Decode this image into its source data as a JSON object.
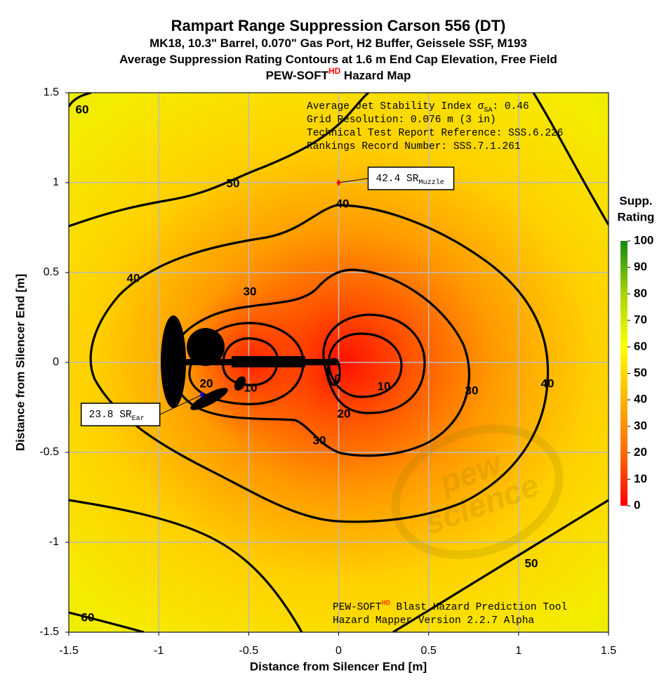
{
  "chart_data": {
    "type": "contour",
    "title": "Rampart Range Suppression Carson 556 (DT)",
    "subtitle_lines": [
      [
        "MK18, 10.3\" Barrel, 0.070\" Gas Port, H2 Buffer, Geissele SSF, M193"
      ],
      [
        "Average Suppression Rating Contours at 1.6 m End Cap Elevation, Free Field"
      ],
      [
        "PEW-SOFT",
        "HD",
        " Hazard Map"
      ]
    ],
    "xlabel": "Distance from Silencer End [m]",
    "ylabel": "Distance from Silencer End [m]",
    "xlim": [
      -1.5,
      1.5
    ],
    "ylim": [
      -1.5,
      1.5
    ],
    "xticks": [
      -1.5,
      -1,
      -0.5,
      0,
      0.5,
      1,
      1.5
    ],
    "yticks": [
      -1.5,
      -1,
      -0.5,
      0,
      0.5,
      1,
      1.5
    ],
    "grid": true,
    "contour_levels": [
      0,
      10,
      20,
      30,
      40,
      50,
      60
    ],
    "colorbar": {
      "title": [
        "Supp.",
        "Rating"
      ],
      "lim": [
        0,
        100
      ],
      "ticks": [
        0,
        10,
        20,
        30,
        40,
        50,
        60,
        70,
        80,
        90,
        100
      ],
      "colors": [
        "#ff0000",
        "#ff6a00",
        "#ffb400",
        "#ffff00",
        "#a8d400",
        "#138a13"
      ]
    },
    "points": [
      {
        "name": "Muzzle",
        "x": 0,
        "y": 1,
        "value": 42.4,
        "unit": "SR",
        "color": "#ff0000"
      },
      {
        "name": "Ear",
        "x": -0.76,
        "y": -0.18,
        "value": 23.8,
        "unit": "SR",
        "color": "#0000ff"
      }
    ],
    "info_lines": [
      [
        "Average Jet Stability Index σ",
        "SA",
        ": 0.46"
      ],
      [
        "Grid Resolution: 0.076 m (3 in)"
      ],
      [
        "Technical Test Report Reference: SSS.6.226"
      ],
      [
        "Rankings Record Number: SSS.7.1.261"
      ]
    ],
    "footer_lines": [
      [
        "PEW-SOFT",
        "HD",
        " Blast Hazard Prediction Tool"
      ],
      [
        "Hazard Mapper Version 2.2.7 Alpha"
      ]
    ],
    "watermark": [
      "pew",
      "science"
    ]
  }
}
